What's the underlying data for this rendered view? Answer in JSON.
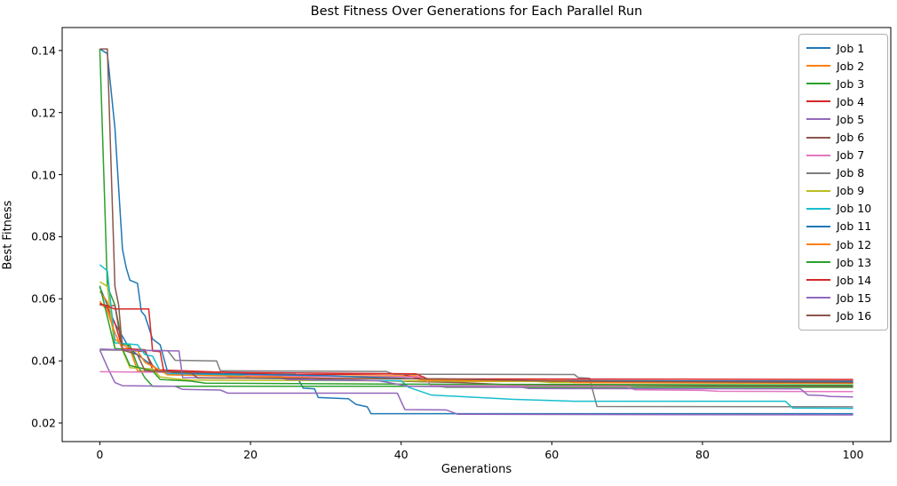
{
  "figure": {
    "title": "Best Fitness Over Generations for Each Parallel Run",
    "xlabel": "Generations",
    "ylabel": "Best Fitness"
  },
  "chart_data": {
    "type": "line",
    "title": "Best Fitness Over Generations for Each Parallel Run",
    "xlabel": "Generations",
    "ylabel": "Best Fitness",
    "xlim": [
      -5,
      105
    ],
    "ylim": [
      0.014,
      0.1474
    ],
    "xticks": [
      0,
      20,
      40,
      60,
      80,
      100
    ],
    "yticks": [
      0.02,
      0.04,
      0.06,
      0.08,
      0.1,
      0.12,
      0.14
    ],
    "grid": false,
    "legend_position": "upper right",
    "series": [
      {
        "name": "Job 1",
        "color": "#1f77b4",
        "points": [
          [
            0,
            0.0638
          ],
          [
            2,
            0.052
          ],
          [
            4,
            0.0438
          ],
          [
            6,
            0.0402
          ],
          [
            8,
            0.0366
          ],
          [
            9,
            0.036
          ],
          [
            26,
            0.0356
          ],
          [
            27,
            0.0312
          ],
          [
            28.5,
            0.031
          ],
          [
            29,
            0.0282
          ],
          [
            33,
            0.0278
          ],
          [
            34,
            0.026
          ],
          [
            35.5,
            0.0252
          ],
          [
            36,
            0.023
          ],
          [
            100,
            0.023
          ]
        ]
      },
      {
        "name": "Job 2",
        "color": "#ff7f0e",
        "points": [
          [
            0,
            0.0624
          ],
          [
            1,
            0.059
          ],
          [
            2,
            0.047
          ],
          [
            3,
            0.0452
          ],
          [
            4,
            0.044
          ],
          [
            5,
            0.0368
          ],
          [
            16,
            0.036
          ],
          [
            17,
            0.035
          ],
          [
            42,
            0.0352
          ],
          [
            43,
            0.034
          ],
          [
            46,
            0.0334
          ],
          [
            100,
            0.0332
          ]
        ]
      },
      {
        "name": "Job 3",
        "color": "#2ca02c",
        "points": [
          [
            0,
            0.1405
          ],
          [
            1,
            0.064
          ],
          [
            2,
            0.058
          ],
          [
            3,
            0.0455
          ],
          [
            4,
            0.045
          ],
          [
            5,
            0.0385
          ],
          [
            6,
            0.0345
          ],
          [
            7,
            0.0318
          ],
          [
            45,
            0.0318
          ],
          [
            46,
            0.0315
          ],
          [
            100,
            0.0315
          ]
        ]
      },
      {
        "name": "Job 4",
        "color": "#d62728",
        "points": [
          [
            0,
            0.0585
          ],
          [
            1,
            0.057
          ],
          [
            2,
            0.0522
          ],
          [
            3,
            0.044
          ],
          [
            6,
            0.0436
          ],
          [
            7,
            0.0372
          ],
          [
            20,
            0.036
          ],
          [
            25,
            0.0355
          ],
          [
            40,
            0.0358
          ],
          [
            41.5,
            0.0348
          ],
          [
            44,
            0.0336
          ],
          [
            100,
            0.0335
          ]
        ]
      },
      {
        "name": "Job 5",
        "color": "#9467bd",
        "points": [
          [
            0,
            0.0435
          ],
          [
            1,
            0.038
          ],
          [
            2,
            0.033
          ],
          [
            3,
            0.032
          ],
          [
            10,
            0.0318
          ],
          [
            11,
            0.0308
          ],
          [
            16,
            0.0306
          ],
          [
            17,
            0.0296
          ],
          [
            39.5,
            0.0296
          ],
          [
            40.5,
            0.0243
          ],
          [
            46,
            0.0242
          ],
          [
            47.5,
            0.0228
          ],
          [
            100,
            0.0226
          ]
        ]
      },
      {
        "name": "Job 6",
        "color": "#8c564b",
        "points": [
          [
            0,
            0.058
          ],
          [
            2,
            0.0578
          ],
          [
            3,
            0.0435
          ],
          [
            6,
            0.043
          ],
          [
            7,
            0.0385
          ],
          [
            8,
            0.0366
          ],
          [
            11,
            0.0355
          ],
          [
            25,
            0.035
          ],
          [
            30,
            0.034
          ],
          [
            48,
            0.033
          ],
          [
            55,
            0.0322
          ],
          [
            100,
            0.0318
          ]
        ]
      },
      {
        "name": "Job 7",
        "color": "#e377c2",
        "points": [
          [
            0,
            0.0365
          ],
          [
            9,
            0.0363
          ],
          [
            10,
            0.0355
          ],
          [
            24,
            0.0353
          ],
          [
            25,
            0.035
          ],
          [
            43,
            0.0348
          ],
          [
            44,
            0.032
          ],
          [
            70,
            0.0318
          ],
          [
            71,
            0.0307
          ],
          [
            80,
            0.0305
          ],
          [
            82,
            0.0302
          ],
          [
            100,
            0.0301
          ]
        ]
      },
      {
        "name": "Job 8",
        "color": "#7f7f7f",
        "points": [
          [
            0,
            0.0435
          ],
          [
            9,
            0.0433
          ],
          [
            10,
            0.0402
          ],
          [
            15.5,
            0.04
          ],
          [
            16,
            0.0368
          ],
          [
            38,
            0.0366
          ],
          [
            39,
            0.0357
          ],
          [
            63,
            0.0356
          ],
          [
            63.5,
            0.0346
          ],
          [
            65,
            0.0344
          ],
          [
            66,
            0.0253
          ],
          [
            100,
            0.0252
          ]
        ]
      },
      {
        "name": "Job 9",
        "color": "#bcbd22",
        "points": [
          [
            0,
            0.0655
          ],
          [
            1,
            0.064
          ],
          [
            2,
            0.0438
          ],
          [
            3,
            0.0435
          ],
          [
            4,
            0.0378
          ],
          [
            7,
            0.0374
          ],
          [
            8,
            0.0348
          ],
          [
            10,
            0.0342
          ],
          [
            12,
            0.0338
          ],
          [
            58,
            0.0334
          ],
          [
            60,
            0.033
          ],
          [
            100,
            0.0328
          ]
        ]
      },
      {
        "name": "Job 10",
        "color": "#17becf",
        "points": [
          [
            0,
            0.071
          ],
          [
            1,
            0.069
          ],
          [
            2,
            0.0458
          ],
          [
            5,
            0.0452
          ],
          [
            6,
            0.042
          ],
          [
            7,
            0.0415
          ],
          [
            8,
            0.0368
          ],
          [
            9,
            0.0358
          ],
          [
            19,
            0.0353
          ],
          [
            20,
            0.0344
          ],
          [
            27,
            0.0342
          ],
          [
            28,
            0.0338
          ],
          [
            40,
            0.0336
          ],
          [
            41,
            0.0315
          ],
          [
            44,
            0.029
          ],
          [
            55,
            0.0276
          ],
          [
            63,
            0.027
          ],
          [
            91,
            0.027
          ],
          [
            92,
            0.0248
          ],
          [
            100,
            0.0247
          ]
        ]
      },
      {
        "name": "Job 11",
        "color": "#1f77b4",
        "points": [
          [
            0,
            0.1405
          ],
          [
            1,
            0.139
          ],
          [
            2,
            0.115
          ],
          [
            3,
            0.076
          ],
          [
            3.5,
            0.07
          ],
          [
            4,
            0.066
          ],
          [
            5,
            0.065
          ],
          [
            5.5,
            0.056
          ],
          [
            6,
            0.0545
          ],
          [
            7,
            0.047
          ],
          [
            8,
            0.0452
          ],
          [
            9,
            0.0365
          ],
          [
            12,
            0.036
          ],
          [
            30,
            0.0352
          ],
          [
            45,
            0.034
          ],
          [
            60,
            0.0336
          ],
          [
            100,
            0.0334
          ]
        ]
      },
      {
        "name": "Job 12",
        "color": "#ff7f0e",
        "points": [
          [
            0,
            0.0592
          ],
          [
            1,
            0.056
          ],
          [
            2,
            0.049
          ],
          [
            3,
            0.0438
          ],
          [
            5,
            0.0432
          ],
          [
            6,
            0.0395
          ],
          [
            8,
            0.037
          ],
          [
            9,
            0.0355
          ],
          [
            20,
            0.035
          ],
          [
            30,
            0.0344
          ],
          [
            42,
            0.0342
          ],
          [
            43,
            0.0338
          ],
          [
            62,
            0.0336
          ],
          [
            63,
            0.033
          ],
          [
            100,
            0.0328
          ]
        ]
      },
      {
        "name": "Job 13",
        "color": "#2ca02c",
        "points": [
          [
            0,
            0.0642
          ],
          [
            2,
            0.044
          ],
          [
            3,
            0.0438
          ],
          [
            4,
            0.0385
          ],
          [
            7,
            0.0368
          ],
          [
            8,
            0.034
          ],
          [
            12,
            0.0335
          ],
          [
            14,
            0.0328
          ],
          [
            40,
            0.0325
          ],
          [
            100,
            0.0322
          ]
        ]
      },
      {
        "name": "Job 14",
        "color": "#d62728",
        "points": [
          [
            0,
            0.0585
          ],
          [
            2,
            0.0567
          ],
          [
            6.5,
            0.0567
          ],
          [
            7,
            0.0432
          ],
          [
            8,
            0.043
          ],
          [
            8.5,
            0.0366
          ],
          [
            20,
            0.0362
          ],
          [
            42,
            0.0358
          ],
          [
            43.5,
            0.0342
          ],
          [
            100,
            0.034
          ]
        ]
      },
      {
        "name": "Job 15",
        "color": "#9467bd",
        "points": [
          [
            0,
            0.0438
          ],
          [
            5,
            0.0434
          ],
          [
            10.5,
            0.0432
          ],
          [
            11,
            0.0346
          ],
          [
            24,
            0.0344
          ],
          [
            25,
            0.034
          ],
          [
            37,
            0.0336
          ],
          [
            41,
            0.0318
          ],
          [
            56,
            0.0315
          ],
          [
            57,
            0.0311
          ],
          [
            93,
            0.031
          ],
          [
            94,
            0.029
          ],
          [
            96,
            0.0288
          ],
          [
            97,
            0.0285
          ],
          [
            100,
            0.0284
          ]
        ]
      },
      {
        "name": "Job 16",
        "color": "#8c564b",
        "points": [
          [
            0,
            0.1405
          ],
          [
            1,
            0.1405
          ],
          [
            2,
            0.064
          ],
          [
            2.5,
            0.058
          ],
          [
            3,
            0.0435
          ],
          [
            5,
            0.042
          ],
          [
            6,
            0.0368
          ],
          [
            12,
            0.0362
          ],
          [
            13,
            0.0345
          ],
          [
            45,
            0.0342
          ],
          [
            60,
            0.0335
          ],
          [
            100,
            0.033
          ]
        ]
      }
    ]
  }
}
